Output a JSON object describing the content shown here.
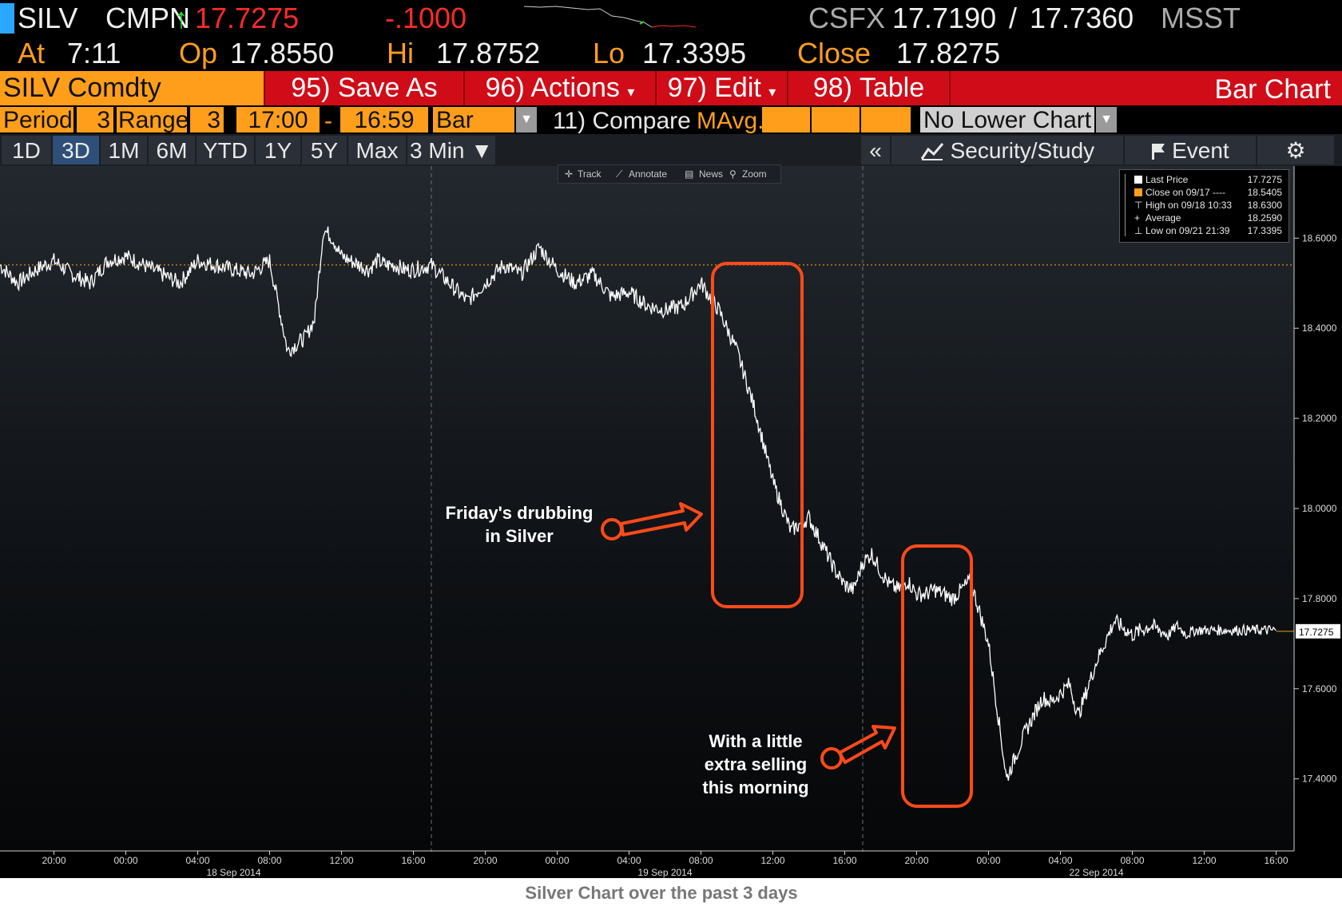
{
  "header": {
    "ticker": "SILV",
    "source": "CMPN",
    "up_arrow": "↑",
    "last": "17.7275",
    "change": "-.1000",
    "dealer": "CSFX",
    "bid": "17.7190",
    "slash": "/",
    "ask": "17.7360",
    "dealer2": "MSST",
    "at_label": "At",
    "time": "7:11",
    "op_label": "Op",
    "open": "17.8550",
    "hi_label": "Hi",
    "high": "17.8752",
    "lo_label": "Lo",
    "low": "17.3395",
    "close_label": "Close",
    "close": "17.8275"
  },
  "menu": {
    "security": "SILV Comdty",
    "save_as": "95) Save As",
    "actions": "96) Actions",
    "actions_caret": "▾",
    "edit": "97) Edit",
    "edit_caret": "▾",
    "table": "98) Table",
    "title": "Bar Chart"
  },
  "settings": {
    "period_label": "Period",
    "period_value": "3",
    "range_label": "Range",
    "range_value": "3",
    "start_time": "17:00",
    "dash": "-",
    "end_time": "16:59",
    "chart_style": "Bar",
    "dd_arrow": "▼",
    "compare": "11) Compare",
    "mavg": "MAvg.",
    "lower_chart": "No Lower Chart"
  },
  "tabs": [
    {
      "label": "1D"
    },
    {
      "label": "3D"
    },
    {
      "label": "1M"
    },
    {
      "label": "6M"
    },
    {
      "label": "YTD"
    },
    {
      "label": "1Y"
    },
    {
      "label": "5Y"
    },
    {
      "label": "Max"
    },
    {
      "label": "3 Min ▼"
    }
  ],
  "right_tabs": {
    "collapse": "«",
    "security_study": "Security/Study",
    "event": "Event",
    "gear": "⚙"
  },
  "toolbar": {
    "track": "Track",
    "annotate": "Annotate",
    "news": "News",
    "zoom": "Zoom"
  },
  "legend": {
    "last_label": "Last Price",
    "last_value": "17.7275",
    "close_label": "Close on 09/17 ----",
    "close_value": "18.5405",
    "high_label": "High on 09/18 10:33",
    "high_value": "18.6300",
    "avg_label": "Average",
    "avg_value": "18.2590",
    "low_label": "Low on 09/21 21:39",
    "low_value": "17.3395"
  },
  "annotations": {
    "friday_line1": "Friday's drubbing",
    "friday_line2": "in Silver",
    "morning_line1": "With a little",
    "morning_line2": "extra selling",
    "morning_line3": "this morning"
  },
  "caption": "Silver Chart over the past 3 days",
  "colors": {
    "orange": "#ff9e1b",
    "red_bar": "#d00c18",
    "price_up": "#ff2a2a",
    "annotation": "#ff4a1a",
    "line": "#ffffff",
    "ref_line": "#d98b1a"
  },
  "chart_data": {
    "type": "line",
    "title": "",
    "xlabel": "",
    "ylabel": "",
    "ylim": [
      17.24,
      18.76
    ],
    "y_ticks": [
      "18.6000",
      "18.4000",
      "18.2000",
      "18.0000",
      "17.8000",
      "17.6000",
      "17.4000"
    ],
    "y_tick_values": [
      18.6,
      18.4,
      18.2,
      18.0,
      17.8,
      17.6,
      17.4
    ],
    "x_tick_labels": [
      "20:00",
      "00:00",
      "04:00",
      "08:00",
      "12:00",
      "16:00",
      "20:00",
      "00:00",
      "04:00",
      "08:00",
      "12:00",
      "16:00",
      "20:00",
      "00:00",
      "04:00",
      "08:00",
      "12:00",
      "16:00"
    ],
    "date_labels": [
      "18 Sep 2014",
      "19 Sep 2014",
      "22 Sep 2014"
    ],
    "reference_line": {
      "label": "Close on 09/17",
      "value": 18.5405
    },
    "last_price_marker": "17.7275",
    "session_hours_total": 72,
    "series": [
      {
        "x": [
          0,
          1,
          2,
          3,
          4,
          5,
          6,
          7,
          8,
          9,
          10,
          11,
          12,
          13,
          14,
          15,
          16,
          17,
          17.5,
          18,
          18.5,
          19,
          19.5,
          20,
          20.5,
          21,
          21.5,
          22,
          22.5,
          23,
          24,
          25,
          26,
          27,
          28,
          29,
          30,
          31,
          32,
          33,
          34,
          35,
          36,
          37,
          38,
          39,
          40,
          41,
          42,
          43,
          44,
          45,
          46,
          46.5,
          47,
          47.5,
          48,
          48.5,
          49,
          49.5,
          50,
          50.5,
          51,
          51.5,
          52,
          53,
          54,
          55,
          56,
          57,
          58,
          58.5,
          59,
          59.5,
          60,
          61,
          62,
          63,
          64,
          64.5,
          65,
          65.5,
          66,
          66.5,
          67,
          68,
          69,
          70,
          71
        ],
        "values": [
          18.54,
          18.5,
          18.53,
          18.55,
          18.52,
          18.5,
          18.55,
          18.56,
          18.54,
          18.52,
          18.5,
          18.55,
          18.54,
          18.53,
          18.52,
          18.55,
          18.35,
          18.38,
          18.42,
          18.62,
          18.6,
          18.56,
          18.55,
          18.54,
          18.53,
          18.55,
          18.54,
          18.54,
          18.53,
          18.53,
          18.54,
          18.5,
          18.46,
          18.5,
          18.54,
          18.52,
          18.58,
          18.53,
          18.5,
          18.52,
          18.47,
          18.48,
          18.45,
          18.44,
          18.45,
          18.5,
          18.44,
          18.35,
          18.22,
          18.06,
          17.95,
          17.98,
          17.9,
          17.86,
          17.83,
          17.82,
          17.88,
          17.9,
          17.86,
          17.83,
          17.82,
          17.84,
          17.81,
          17.81,
          17.82,
          17.8,
          17.84,
          17.7,
          17.4,
          17.5,
          17.58,
          17.57,
          17.59,
          17.61,
          17.54,
          17.66,
          17.75,
          17.72,
          17.74,
          17.73,
          17.72,
          17.74,
          17.72,
          17.73,
          17.73,
          17.73,
          17.73,
          17.73,
          17.73
        ]
      }
    ]
  }
}
